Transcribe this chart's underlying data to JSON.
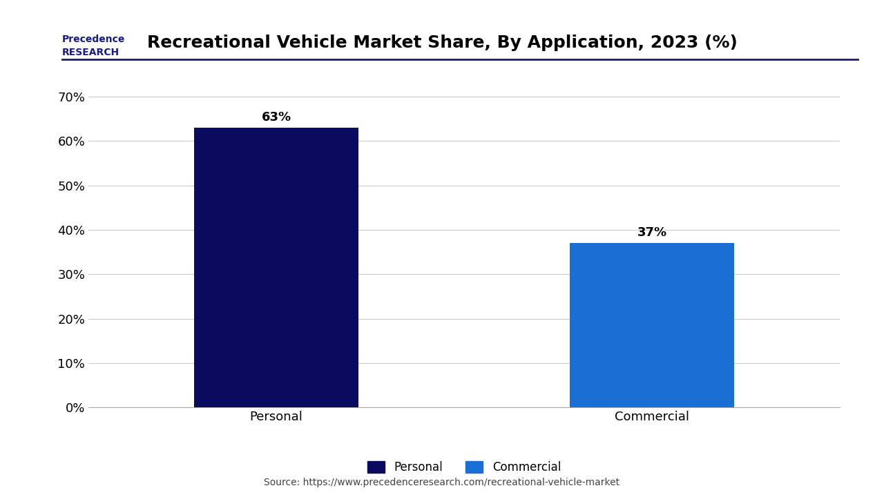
{
  "title": "Recreational Vehicle Market Share, By Application, 2023 (%)",
  "categories": [
    "Personal",
    "Commercial"
  ],
  "values": [
    63,
    37
  ],
  "bar_colors": [
    "#0a0a5e",
    "#1a6fd4"
  ],
  "bar_width": 0.35,
  "ylim": [
    0,
    75
  ],
  "yticks": [
    0,
    10,
    20,
    30,
    40,
    50,
    60,
    70
  ],
  "ytick_labels": [
    "0%",
    "10%",
    "20%",
    "30%",
    "40%",
    "50%",
    "60%",
    "70%"
  ],
  "value_labels": [
    "63%",
    "37%"
  ],
  "legend_labels": [
    "Personal",
    "Commercial"
  ],
  "source_text": "Source: https://www.precedenceresearch.com/recreational-vehicle-market",
  "background_color": "#ffffff",
  "plot_bg_color": "#ffffff",
  "title_fontsize": 18,
  "tick_fontsize": 13,
  "label_fontsize": 13,
  "value_fontsize": 13,
  "legend_fontsize": 12,
  "source_fontsize": 10,
  "bar_positions": [
    1,
    3
  ]
}
